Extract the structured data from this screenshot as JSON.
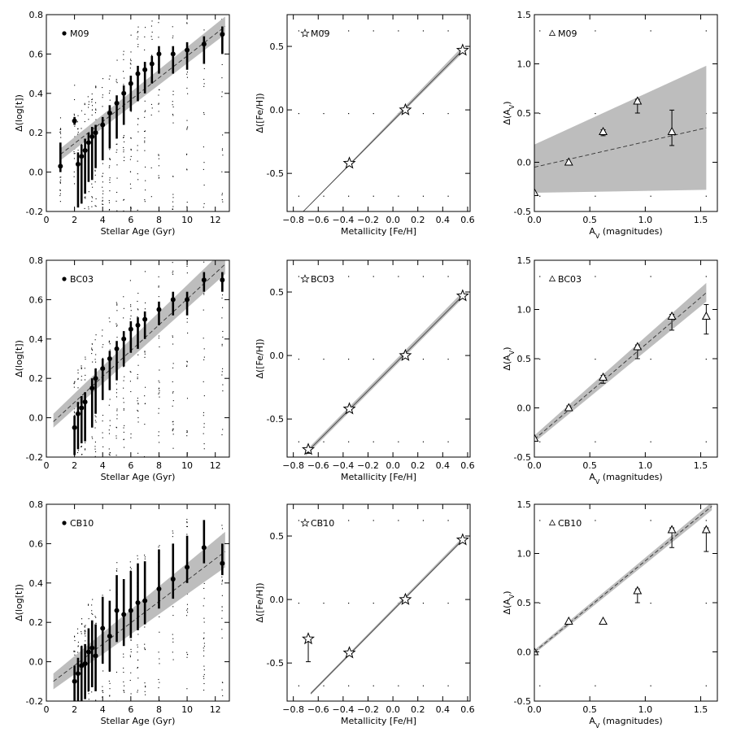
{
  "figure_title": "",
  "colors": {
    "band": "#bdbdbd",
    "axis": "#000000",
    "background": "#ffffff"
  },
  "chart_data": [
    {
      "type": "scatter",
      "id": "age-m09",
      "marker": "circle",
      "legend": "M09",
      "xlabel": "Stellar Age (Gyr)",
      "ylabel": "Δ(log[t])",
      "xlim": [
        0,
        13
      ],
      "ylim": [
        -0.2,
        0.8
      ],
      "xticks": [
        0,
        2,
        4,
        6,
        8,
        10,
        12
      ],
      "xtick_labels": [
        "0",
        "2",
        "4",
        "6",
        "8",
        "10",
        "12"
      ],
      "yticks": [
        -0.2,
        0.0,
        0.2,
        0.4,
        0.6,
        0.8
      ],
      "ytick_labels": [
        "-0.2",
        "0.0",
        "0.2",
        "0.4",
        "0.6",
        "0.8"
      ],
      "points": {
        "x": [
          1.0,
          2.0,
          2.25,
          2.5,
          2.75,
          3.0,
          3.25,
          3.5,
          4.0,
          4.5,
          5.0,
          5.5,
          6.0,
          6.5,
          7.0,
          7.5,
          8.0,
          9.0,
          10.0,
          11.2,
          12.5
        ],
        "y": [
          0.03,
          0.26,
          0.04,
          0.08,
          0.11,
          0.15,
          0.18,
          0.2,
          0.24,
          0.3,
          0.35,
          0.4,
          0.45,
          0.5,
          0.52,
          0.55,
          0.6,
          0.6,
          0.62,
          0.65,
          0.7
        ],
        "err_low": [
          0.03,
          0.02,
          0.22,
          0.24,
          0.22,
          0.2,
          0.22,
          0.18,
          0.18,
          0.18,
          0.18,
          0.16,
          0.14,
          0.14,
          0.12,
          0.1,
          0.1,
          0.1,
          0.1,
          0.1,
          0.1
        ],
        "err_high": [
          0.12,
          0.02,
          0.06,
          0.06,
          0.06,
          0.05,
          0.05,
          0.04,
          0.04,
          0.04,
          0.04,
          0.04,
          0.04,
          0.04,
          0.04,
          0.04,
          0.04,
          0.04,
          0.04,
          0.04,
          0.04
        ]
      },
      "fit": {
        "x": [
          1.0,
          12.7
        ],
        "y": [
          0.09,
          0.74
        ]
      },
      "band": {
        "x": [
          1.0,
          12.7
        ],
        "low": [
          0.06,
          0.7
        ],
        "high": [
          0.12,
          0.79
        ]
      }
    },
    {
      "type": "scatter",
      "id": "feh-m09",
      "marker": "star",
      "legend": "M09",
      "xlabel": "Metallicity [Fe/H]",
      "ylabel": "Δ([Fe/H])",
      "xlim": [
        -0.85,
        0.62
      ],
      "ylim": [
        -0.8,
        0.75
      ],
      "xticks": [
        -0.8,
        -0.6,
        -0.4,
        -0.2,
        0.0,
        0.2,
        0.4,
        0.6
      ],
      "xtick_labels": [
        "−0.8",
        "−0.6",
        "−0.4",
        "−0.2",
        "0.0",
        "0.2",
        "0.4",
        "0.6"
      ],
      "yticks": [
        -0.5,
        0.0,
        0.5
      ],
      "ytick_labels": [
        "-0.5",
        "0.0",
        "0.5"
      ],
      "points": {
        "x": [
          -0.35,
          0.1,
          0.56
        ],
        "y": [
          -0.42,
          0.0,
          0.47
        ],
        "err_low": [
          0,
          0,
          0
        ],
        "err_high": [
          0,
          0,
          0
        ]
      },
      "fit": {
        "x": [
          -0.72,
          0.56
        ],
        "y": [
          -0.8,
          0.47
        ]
      },
      "band": {
        "x": [
          -0.72,
          0.56
        ],
        "low": [
          -0.8,
          0.45
        ],
        "high": [
          -0.8,
          0.5
        ]
      }
    },
    {
      "type": "scatter",
      "id": "av-m09",
      "marker": "triangle",
      "legend": "M09",
      "xlabel": "A_V (magnitudes)",
      "ylabel": "Δ(A_V)",
      "xlim": [
        0,
        1.65
      ],
      "ylim": [
        -0.5,
        1.5
      ],
      "xticks": [
        0.0,
        0.5,
        1.0,
        1.5
      ],
      "xtick_labels": [
        "0.0",
        "0.5",
        "1.0",
        "1.5"
      ],
      "yticks": [
        -0.5,
        0.0,
        0.5,
        1.0,
        1.5
      ],
      "ytick_labels": [
        "-0.5",
        "0.0",
        "0.5",
        "1.0",
        "1.5"
      ],
      "points": {
        "x": [
          0.0,
          0.31,
          0.62,
          0.93,
          1.24
        ],
        "y": [
          -0.31,
          0.0,
          0.31,
          0.62,
          0.31
        ],
        "err_low": [
          0,
          0,
          0.04,
          0.12,
          0.14
        ],
        "err_high": [
          0,
          0,
          0.02,
          0.02,
          0.22
        ]
      },
      "fit": {
        "x": [
          0.0,
          1.55
        ],
        "y": [
          -0.05,
          0.35
        ]
      },
      "band": {
        "x": [
          0.0,
          1.55
        ],
        "low": [
          -0.31,
          -0.28
        ],
        "high": [
          0.18,
          0.98
        ]
      }
    },
    {
      "type": "scatter",
      "id": "age-bc03",
      "marker": "circle",
      "legend": "BC03",
      "xlabel": "Stellar Age (Gyr)",
      "ylabel": "Δ(log[t])",
      "xlim": [
        0,
        13
      ],
      "ylim": [
        -0.2,
        0.8
      ],
      "xticks": [
        0,
        2,
        4,
        6,
        8,
        10,
        12
      ],
      "xtick_labels": [
        "0",
        "2",
        "4",
        "6",
        "8",
        "10",
        "12"
      ],
      "yticks": [
        -0.2,
        0.0,
        0.2,
        0.4,
        0.6,
        0.8
      ],
      "ytick_labels": [
        "-0.2",
        "0.0",
        "0.2",
        "0.4",
        "0.6",
        "0.8"
      ],
      "points": {
        "x": [
          2.0,
          2.25,
          2.5,
          2.75,
          3.25,
          3.5,
          4.0,
          4.5,
          5.0,
          5.5,
          6.0,
          6.5,
          7.0,
          8.0,
          9.0,
          10.0,
          11.2,
          12.5
        ],
        "y": [
          -0.05,
          0.02,
          0.05,
          0.08,
          0.15,
          0.2,
          0.25,
          0.3,
          0.35,
          0.4,
          0.45,
          0.47,
          0.5,
          0.55,
          0.6,
          0.6,
          0.7,
          0.7
        ],
        "err_low": [
          0.14,
          0.18,
          0.18,
          0.2,
          0.2,
          0.18,
          0.16,
          0.16,
          0.16,
          0.14,
          0.12,
          0.12,
          0.1,
          0.08,
          0.08,
          0.08,
          0.06,
          0.06
        ],
        "err_high": [
          0.06,
          0.06,
          0.06,
          0.05,
          0.05,
          0.05,
          0.05,
          0.04,
          0.04,
          0.04,
          0.04,
          0.04,
          0.04,
          0.04,
          0.04,
          0.04,
          0.04,
          0.04
        ]
      },
      "fit": {
        "x": [
          0.5,
          12.7
        ],
        "y": [
          -0.02,
          0.78
        ]
      },
      "band": {
        "x": [
          0.5,
          12.7
        ],
        "low": [
          -0.05,
          0.73
        ],
        "high": [
          0.02,
          0.86
        ]
      }
    },
    {
      "type": "scatter",
      "id": "feh-bc03",
      "marker": "star",
      "legend": "BC03",
      "xlabel": "Metallicity [Fe/H]",
      "ylabel": "Δ([Fe/H])",
      "xlim": [
        -0.85,
        0.62
      ],
      "ylim": [
        -0.8,
        0.75
      ],
      "xticks": [
        -0.8,
        -0.6,
        -0.4,
        -0.2,
        0.0,
        0.2,
        0.4,
        0.6
      ],
      "xtick_labels": [
        "−0.8",
        "−0.6",
        "−0.4",
        "−0.2",
        "0.0",
        "0.2",
        "0.4",
        "0.6"
      ],
      "yticks": [
        -0.5,
        0.0,
        0.5
      ],
      "ytick_labels": [
        "-0.5",
        "0.0",
        "0.5"
      ],
      "points": {
        "x": [
          -0.68,
          -0.35,
          0.1,
          0.56
        ],
        "y": [
          -0.74,
          -0.42,
          0.0,
          0.47
        ],
        "err_low": [
          0.03,
          0,
          0,
          0
        ],
        "err_high": [
          0,
          0,
          0,
          0
        ]
      },
      "fit": {
        "x": [
          -0.7,
          0.56
        ],
        "y": [
          -0.77,
          0.47
        ]
      },
      "band": {
        "x": [
          -0.7,
          0.56
        ],
        "low": [
          -0.79,
          0.45
        ],
        "high": [
          -0.75,
          0.5
        ]
      }
    },
    {
      "type": "scatter",
      "id": "av-bc03",
      "marker": "triangle",
      "legend": "BC03",
      "xlabel": "A_V (magnitudes)",
      "ylabel": "Δ(A_V)",
      "xlim": [
        0,
        1.65
      ],
      "ylim": [
        -0.5,
        1.5
      ],
      "xticks": [
        0.0,
        0.5,
        1.0,
        1.5
      ],
      "xtick_labels": [
        "0.0",
        "0.5",
        "1.0",
        "1.5"
      ],
      "yticks": [
        -0.5,
        0.0,
        0.5,
        1.0,
        1.5
      ],
      "ytick_labels": [
        "-0.5",
        "0.0",
        "0.5",
        "1.0",
        "1.5"
      ],
      "points": {
        "x": [
          0.0,
          0.31,
          0.62,
          0.93,
          1.24,
          1.55
        ],
        "y": [
          -0.31,
          0.0,
          0.31,
          0.62,
          0.93,
          0.93
        ],
        "err_low": [
          0,
          0.02,
          0.06,
          0.12,
          0.14,
          0.18
        ],
        "err_high": [
          0,
          0.02,
          0.02,
          0.02,
          0.02,
          0.12
        ]
      },
      "fit": {
        "x": [
          0.0,
          1.55
        ],
        "y": [
          -0.32,
          1.17
        ]
      },
      "band": {
        "x": [
          0.0,
          1.55
        ],
        "low": [
          -0.35,
          1.08
        ],
        "high": [
          -0.28,
          1.27
        ]
      }
    },
    {
      "type": "scatter",
      "id": "age-cb10",
      "marker": "circle",
      "legend": "CB10",
      "xlabel": "Stellar Age (Gyr)",
      "ylabel": "Δ(log[t])",
      "xlim": [
        0,
        13
      ],
      "ylim": [
        -0.2,
        0.8
      ],
      "xticks": [
        0,
        2,
        4,
        6,
        8,
        10,
        12
      ],
      "xtick_labels": [
        "0",
        "2",
        "4",
        "6",
        "8",
        "10",
        "12"
      ],
      "yticks": [
        -0.2,
        0.0,
        0.2,
        0.4,
        0.6,
        0.8
      ],
      "ytick_labels": [
        "-0.2",
        "0.0",
        "0.2",
        "0.4",
        "0.6",
        "0.8"
      ],
      "points": {
        "x": [
          2.0,
          2.25,
          2.5,
          2.75,
          3.0,
          3.25,
          3.5,
          4.0,
          4.5,
          5.0,
          5.5,
          6.0,
          6.5,
          7.0,
          8.0,
          9.0,
          10.0,
          11.2,
          12.5
        ],
        "y": [
          -0.1,
          -0.06,
          -0.02,
          -0.01,
          0.05,
          0.07,
          0.03,
          0.17,
          0.13,
          0.26,
          0.24,
          0.26,
          0.3,
          0.31,
          0.37,
          0.42,
          0.48,
          0.58,
          0.5
        ],
        "err_low": [
          0.1,
          0.14,
          0.18,
          0.18,
          0.2,
          0.2,
          0.18,
          0.18,
          0.18,
          0.16,
          0.16,
          0.14,
          0.14,
          0.12,
          0.1,
          0.1,
          0.08,
          0.08,
          0.06
        ],
        "err_high": [
          0.08,
          0.08,
          0.1,
          0.1,
          0.12,
          0.14,
          0.16,
          0.16,
          0.18,
          0.18,
          0.18,
          0.2,
          0.2,
          0.2,
          0.2,
          0.18,
          0.16,
          0.14,
          0.1
        ]
      },
      "fit": {
        "x": [
          0.5,
          12.7
        ],
        "y": [
          -0.1,
          0.56
        ]
      },
      "band": {
        "x": [
          0.5,
          12.7
        ],
        "low": [
          -0.14,
          0.48
        ],
        "high": [
          -0.06,
          0.66
        ]
      }
    },
    {
      "type": "scatter",
      "id": "feh-cb10",
      "marker": "star",
      "legend": "CB10",
      "xlabel": "Metallicity [Fe/H]",
      "ylabel": "Δ([Fe/H])",
      "xlim": [
        -0.85,
        0.62
      ],
      "ylim": [
        -0.8,
        0.75
      ],
      "xticks": [
        -0.8,
        -0.6,
        -0.4,
        -0.2,
        0.0,
        0.2,
        0.4,
        0.6
      ],
      "xtick_labels": [
        "−0.8",
        "−0.6",
        "−0.4",
        "−0.2",
        "0.0",
        "0.2",
        "0.4",
        "0.6"
      ],
      "yticks": [
        -0.5,
        0.0,
        0.5
      ],
      "ytick_labels": [
        "-0.5",
        "0.0",
        "0.5"
      ],
      "points": {
        "x": [
          -0.68,
          -0.35,
          0.1,
          0.56
        ],
        "y": [
          -0.31,
          -0.42,
          0.0,
          0.47
        ],
        "err_low": [
          0.18,
          0,
          0,
          0
        ],
        "err_high": [
          0,
          0,
          0,
          0
        ]
      },
      "fit": {
        "x": [
          -0.66,
          0.56
        ],
        "y": [
          -0.74,
          0.47
        ]
      },
      "band": {
        "x": [
          -0.66,
          0.56
        ],
        "low": [
          -0.75,
          0.46
        ],
        "high": [
          -0.73,
          0.49
        ]
      }
    },
    {
      "type": "scatter",
      "id": "av-cb10",
      "marker": "triangle",
      "legend": "CB10",
      "xlabel": "A_V (magnitudes)",
      "ylabel": "Δ(A_V)",
      "xlim": [
        0,
        1.65
      ],
      "ylim": [
        -0.5,
        1.5
      ],
      "xticks": [
        0.0,
        0.5,
        1.0,
        1.5
      ],
      "xtick_labels": [
        "0.0",
        "0.5",
        "1.0",
        "1.5"
      ],
      "yticks": [
        -0.5,
        0.0,
        0.5,
        1.0,
        1.5
      ],
      "ytick_labels": [
        "-0.5",
        "0.0",
        "0.5",
        "1.0",
        "1.5"
      ],
      "points": {
        "x": [
          0.0,
          0.31,
          0.62,
          0.93,
          1.24,
          1.55
        ],
        "y": [
          0.0,
          0.31,
          0.31,
          0.62,
          1.24,
          1.24
        ],
        "err_low": [
          0,
          0,
          0,
          0.12,
          0.18,
          0.22
        ],
        "err_high": [
          0,
          0,
          0,
          0.02,
          0.02,
          0.02
        ]
      },
      "fit": {
        "x": [
          0.0,
          1.6
        ],
        "y": [
          0.0,
          1.48
        ]
      },
      "band": {
        "x": [
          0.0,
          1.6
        ],
        "low": [
          -0.02,
          1.44
        ],
        "high": [
          0.02,
          1.52
        ]
      }
    }
  ]
}
